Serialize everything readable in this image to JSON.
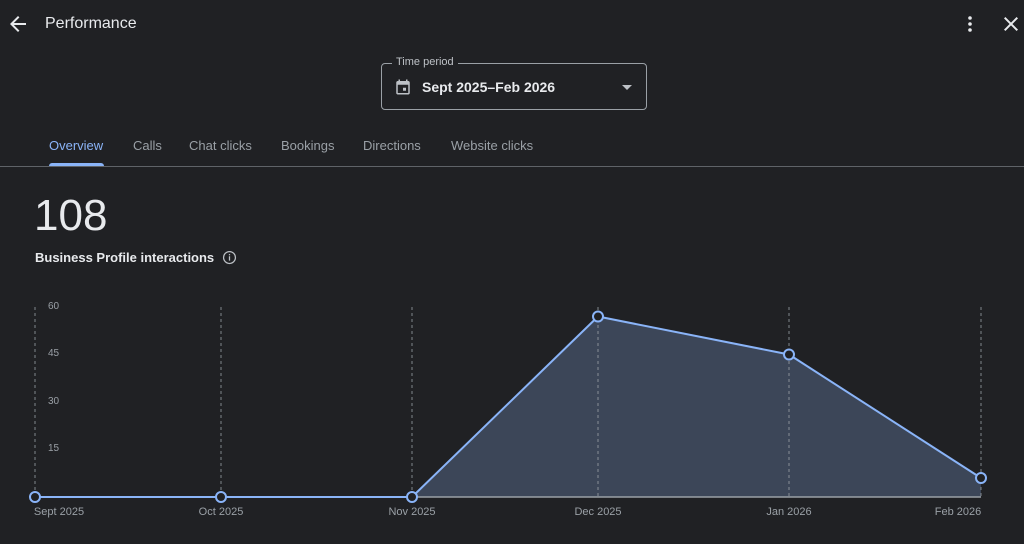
{
  "header": {
    "title": "Performance",
    "back_icon": "arrow-back-icon",
    "more_icon": "more-vert-icon",
    "close_icon": "close-icon"
  },
  "time_period": {
    "label": "Time period",
    "value": "Sept 2025–Feb 2026",
    "icon": "calendar-icon"
  },
  "tabs": [
    {
      "label": "Overview",
      "active": true
    },
    {
      "label": "Calls",
      "active": false
    },
    {
      "label": "Chat clicks",
      "active": false
    },
    {
      "label": "Bookings",
      "active": false
    },
    {
      "label": "Directions",
      "active": false
    },
    {
      "label": "Website clicks",
      "active": false
    }
  ],
  "summary": {
    "value": "108",
    "label": "Business Profile interactions",
    "info_icon": "info-icon"
  },
  "colors": {
    "background": "#202124",
    "accent": "#8ab4f8",
    "area_fill": "#3c4658",
    "text_primary": "#e8eaed",
    "text_secondary": "#9aa0a6"
  },
  "chart_data": {
    "type": "area",
    "title": "Business Profile interactions",
    "categories": [
      "Sept 2025",
      "Oct 2025",
      "Nov 2025",
      "Dec 2025",
      "Jan 2026",
      "Feb 2026"
    ],
    "values": [
      0,
      0,
      0,
      57,
      45,
      6
    ],
    "yticks": [
      "15",
      "30",
      "45",
      "60"
    ],
    "ylim": [
      0,
      60
    ],
    "xlabel": "",
    "ylabel": "",
    "grid": "vertical dashed",
    "legend": "none"
  }
}
